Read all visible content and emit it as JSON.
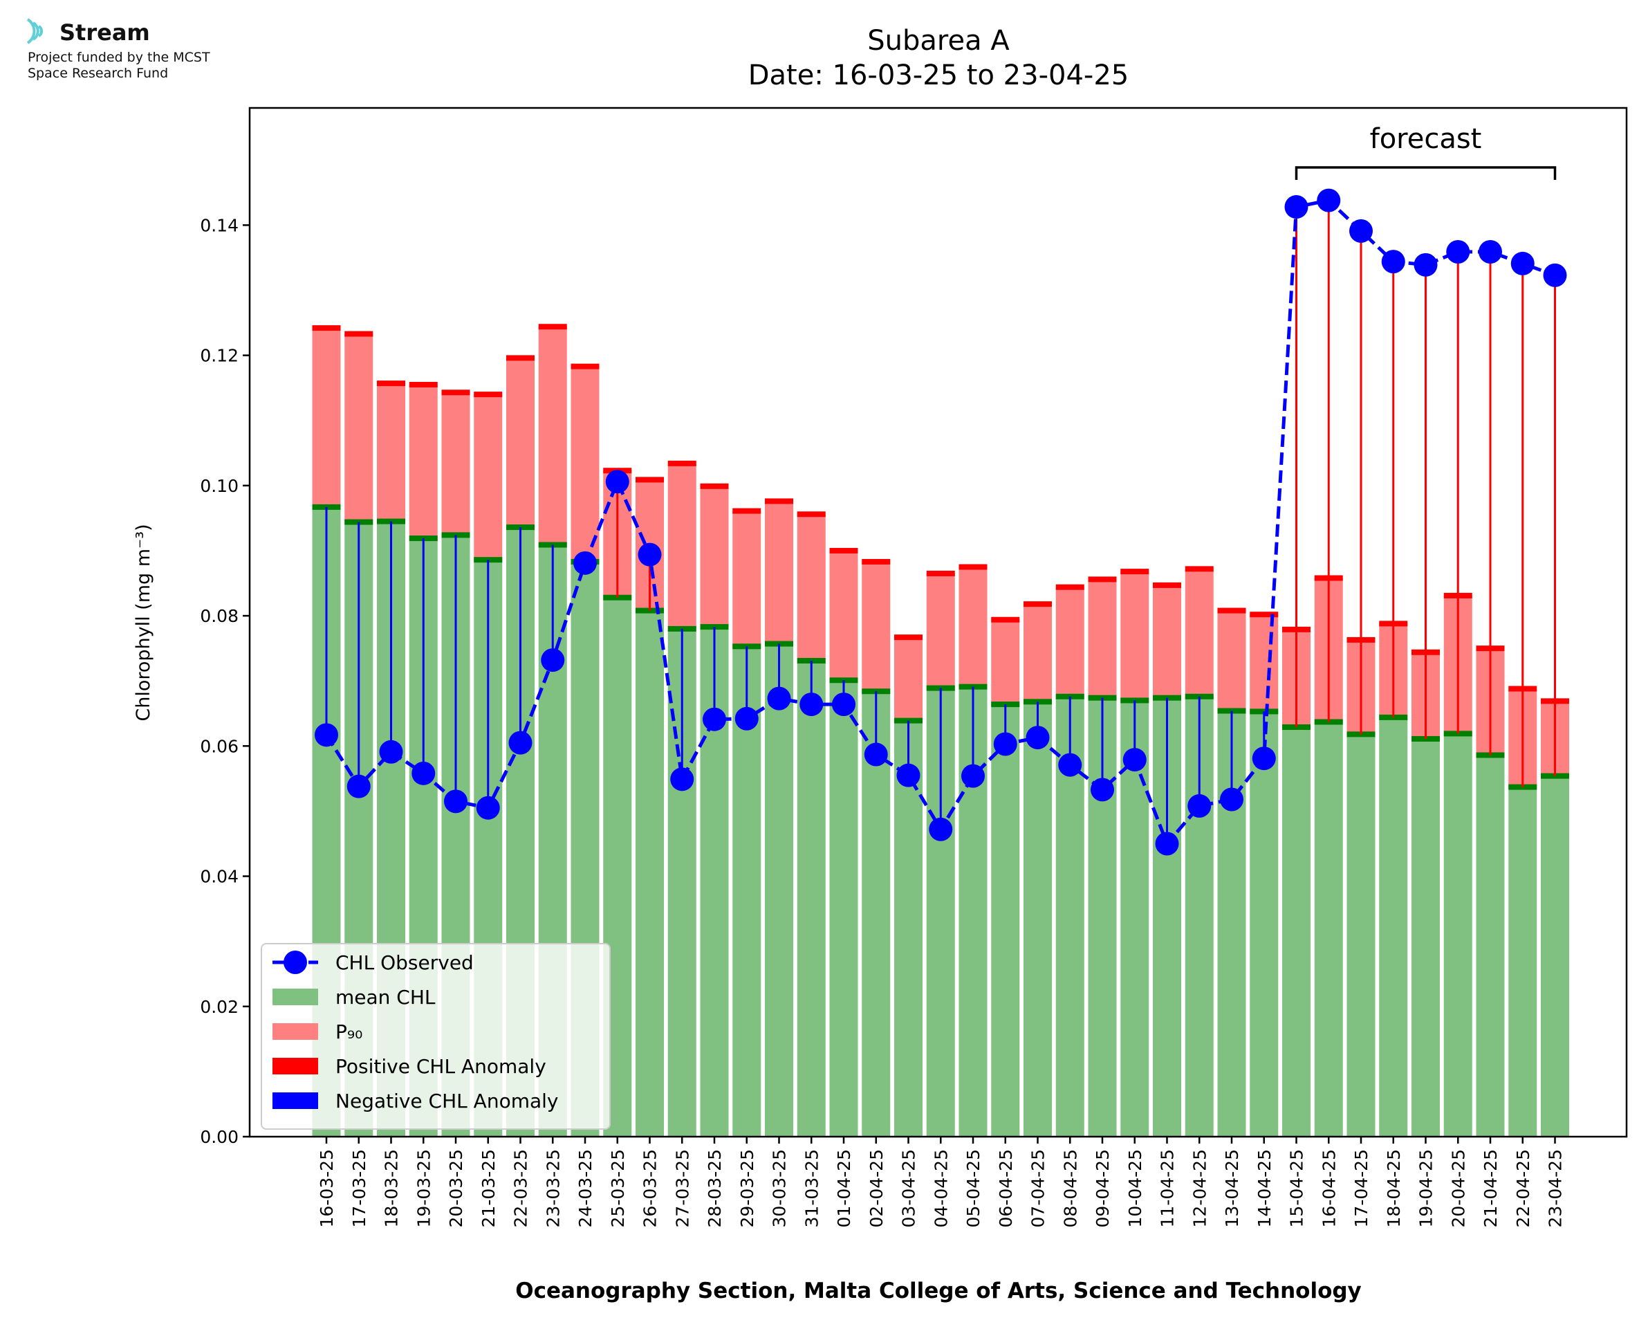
{
  "branding": {
    "name": "Stream",
    "subtitle_line1": "Project funded by the MCST",
    "subtitle_line2": "Space Research Fund"
  },
  "chart_data": {
    "type": "bar",
    "title": "Subarea A",
    "subtitle": "Date: 16-03-25 to 23-04-25",
    "xlabel": "Oceanography Section, Malta College of Arts, Science and Technology",
    "ylabel": "Chlorophyll (mg m⁻³)",
    "ylim": [
      0,
      0.158
    ],
    "yticks": [
      0.0,
      0.02,
      0.04,
      0.06,
      0.08,
      0.1,
      0.12,
      0.14
    ],
    "ytick_labels": [
      "0.00",
      "0.02",
      "0.04",
      "0.06",
      "0.08",
      "0.10",
      "0.12",
      "0.14"
    ],
    "grid": false,
    "legend_position": "lower-left",
    "annotation": {
      "text": "forecast",
      "from": "15-04-25",
      "to": "23-04-25"
    },
    "categories": [
      "16-03-25",
      "17-03-25",
      "18-03-25",
      "19-03-25",
      "20-03-25",
      "21-03-25",
      "22-03-25",
      "23-03-25",
      "24-03-25",
      "25-03-25",
      "26-03-25",
      "27-03-25",
      "28-03-25",
      "29-03-25",
      "30-03-25",
      "31-03-25",
      "01-04-25",
      "02-04-25",
      "03-04-25",
      "04-04-25",
      "05-04-25",
      "06-04-25",
      "07-04-25",
      "08-04-25",
      "09-04-25",
      "10-04-25",
      "11-04-25",
      "12-04-25",
      "13-04-25",
      "14-04-25",
      "15-04-25",
      "16-04-25",
      "17-04-25",
      "18-04-25",
      "19-04-25",
      "20-04-25",
      "21-04-25",
      "22-04-25",
      "23-04-25"
    ],
    "series": [
      {
        "name": "CHL Observed",
        "kind": "line",
        "color": "#0000ff",
        "values": [
          0.0617,
          0.0538,
          0.0591,
          0.0558,
          0.0515,
          0.0505,
          0.0605,
          0.0732,
          0.0881,
          0.1006,
          0.0894,
          0.0549,
          0.0641,
          0.0642,
          0.0673,
          0.0664,
          0.0664,
          0.0587,
          0.0555,
          0.0472,
          0.0554,
          0.0603,
          0.0613,
          0.0571,
          0.0533,
          0.0579,
          0.045,
          0.0508,
          0.0518,
          0.0581,
          0.1428,
          0.1438,
          0.1391,
          0.1344,
          0.1339,
          0.1359,
          0.1359,
          0.1341,
          0.1323
        ]
      },
      {
        "name": "mean CHL",
        "kind": "bar",
        "color": "#80c080",
        "values": [
          0.0967,
          0.0944,
          0.0945,
          0.0919,
          0.0924,
          0.0886,
          0.0936,
          0.0909,
          0.0883,
          0.0828,
          0.0808,
          0.078,
          0.0783,
          0.0753,
          0.0757,
          0.0731,
          0.0701,
          0.0684,
          0.0639,
          0.0689,
          0.0691,
          0.0664,
          0.0668,
          0.0676,
          0.0674,
          0.067,
          0.0674,
          0.0676,
          0.0654,
          0.0653,
          0.0629,
          0.0637,
          0.0618,
          0.0644,
          0.0611,
          0.0619,
          0.0586,
          0.0537,
          0.0554
        ]
      },
      {
        "name": "P₉₀",
        "kind": "bar",
        "color": "#ff8080",
        "values": [
          0.1242,
          0.1233,
          0.1157,
          0.1155,
          0.1143,
          0.114,
          0.1196,
          0.1244,
          0.1183,
          0.1023,
          0.1009,
          0.1034,
          0.0999,
          0.0961,
          0.0976,
          0.0956,
          0.09,
          0.0883,
          0.0767,
          0.0865,
          0.0875,
          0.0794,
          0.0818,
          0.0844,
          0.0856,
          0.0868,
          0.0847,
          0.0872,
          0.0808,
          0.0802,
          0.0779,
          0.0858,
          0.0763,
          0.0788,
          0.0744,
          0.0831,
          0.075,
          0.0688,
          0.0669
        ]
      },
      {
        "name": "Positive CHL Anomaly",
        "kind": "legend-only",
        "color": "#ff0000"
      },
      {
        "name": "Negative CHL Anomaly",
        "kind": "legend-only",
        "color": "#0000ff"
      }
    ],
    "legend": [
      "CHL Observed",
      "mean CHL",
      "P₉₀",
      "Positive CHL Anomaly",
      "Negative CHL Anomaly"
    ]
  }
}
